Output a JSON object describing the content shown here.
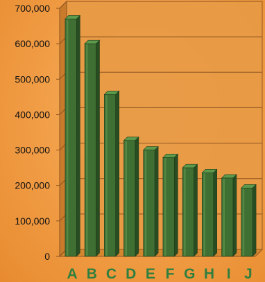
{
  "chart_data": {
    "type": "bar",
    "title": "",
    "xlabel": "",
    "ylabel": "",
    "categories": [
      "A",
      "B",
      "C",
      "D",
      "E",
      "F",
      "G",
      "H",
      "I",
      "J"
    ],
    "values": [
      670000,
      600000,
      457000,
      327000,
      300000,
      279000,
      250000,
      236000,
      221000,
      193000
    ],
    "ylim": [
      0,
      700000
    ],
    "yticks": [
      0,
      100000,
      200000,
      300000,
      400000,
      500000,
      600000,
      700000
    ],
    "ytick_labels": [
      "0",
      "100,000",
      "200,000",
      "300,000",
      "400,000",
      "500,000",
      "600,000",
      "700,000"
    ],
    "grid": true,
    "legend": "none",
    "bar_style": "3d",
    "colors": {
      "bar_front": "#3f6f33",
      "bar_side": "#294d22",
      "bar_top": "#5e9a4c",
      "bar_stroke": "#1e3a19",
      "wall": "#e89a45",
      "wall_side": "#c97b2b",
      "floor": "#d4872f",
      "gridline": "#8c5420",
      "xtick_color": "#2f7f3f"
    }
  }
}
